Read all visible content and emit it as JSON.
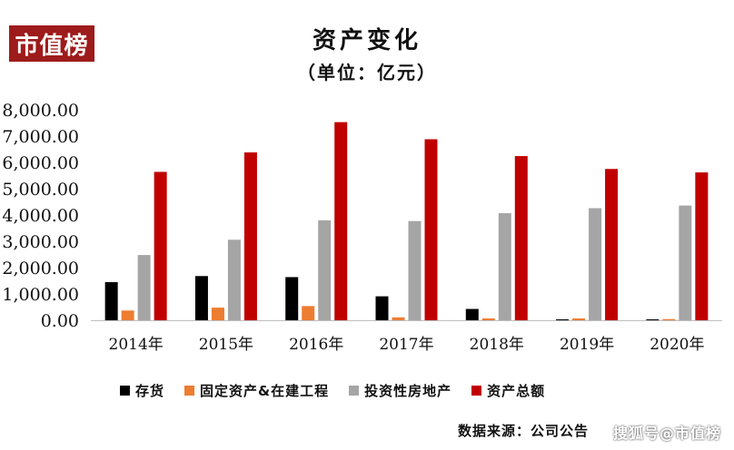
{
  "logo_text": "市值榜",
  "header": {
    "title": "资产变化",
    "subtitle": "（单位：亿元）"
  },
  "source_text": "数据来源：公司公告",
  "watermark_text": "搜狐号@市值榜",
  "colors": {
    "logo_bg": "#9e1b1b",
    "inventory": "#000000",
    "fixed_assets": "#ed7d31",
    "investment_property": "#a5a5a5",
    "total_assets": "#c00000"
  },
  "chart_data": {
    "type": "bar",
    "title": "资产变化",
    "subtitle": "（单位：亿元）",
    "categories": [
      "2014年",
      "2015年",
      "2016年",
      "2017年",
      "2018年",
      "2019年",
      "2020年"
    ],
    "series": [
      {
        "name": "存货",
        "values": [
          1450,
          1680,
          1640,
          910,
          430,
          30,
          30
        ]
      },
      {
        "name": "固定资产&在建工程",
        "values": [
          370,
          480,
          540,
          110,
          70,
          70,
          45
        ]
      },
      {
        "name": "投资性房地产",
        "values": [
          2480,
          3060,
          3800,
          3770,
          4070,
          4260,
          4360
        ]
      },
      {
        "name": "资产总额",
        "values": [
          5640,
          6380,
          7530,
          6880,
          6240,
          5750,
          5620
        ]
      }
    ],
    "ylim": [
      0,
      8000
    ],
    "yticks": [
      "0.00",
      "1,000.00",
      "2,000.00",
      "3,000.00",
      "4,000.00",
      "5,000.00",
      "6,000.00",
      "7,000.00",
      "8,000.00"
    ],
    "grid": false,
    "legend_position": "bottom"
  }
}
